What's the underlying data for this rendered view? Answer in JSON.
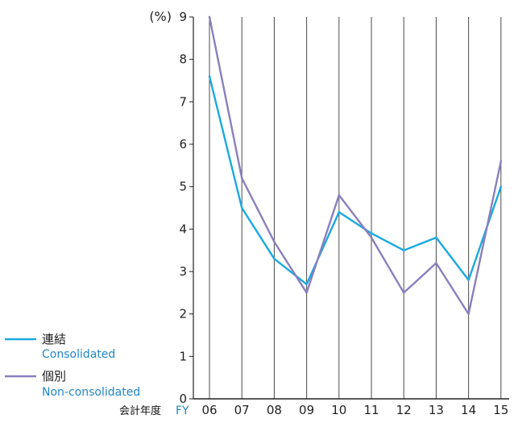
{
  "chart_data": {
    "type": "line",
    "ylabel": "(%)",
    "xlabel_jp": "会計年度",
    "xlabel_en": "FY",
    "ylim": [
      0,
      9
    ],
    "yticks": [
      "0",
      "1",
      "2",
      "3",
      "4",
      "5",
      "6",
      "7",
      "8",
      "9"
    ],
    "categories": [
      "06",
      "07",
      "08",
      "09",
      "10",
      "11",
      "12",
      "13",
      "14",
      "15"
    ],
    "grid": "vertical",
    "legend_position": "bottom-left",
    "series": [
      {
        "name": "連結",
        "name_en": "Consolidated",
        "color": "#1aa9e0",
        "values": [
          7.6,
          4.5,
          3.3,
          2.7,
          4.4,
          3.9,
          3.5,
          3.8,
          2.8,
          5.0
        ]
      },
      {
        "name": "個別",
        "name_en": "Non-consolidated",
        "color": "#8a7fbe",
        "values": [
          9.0,
          5.2,
          3.7,
          2.5,
          4.8,
          3.8,
          2.5,
          3.2,
          2.0,
          5.6
        ]
      }
    ]
  }
}
